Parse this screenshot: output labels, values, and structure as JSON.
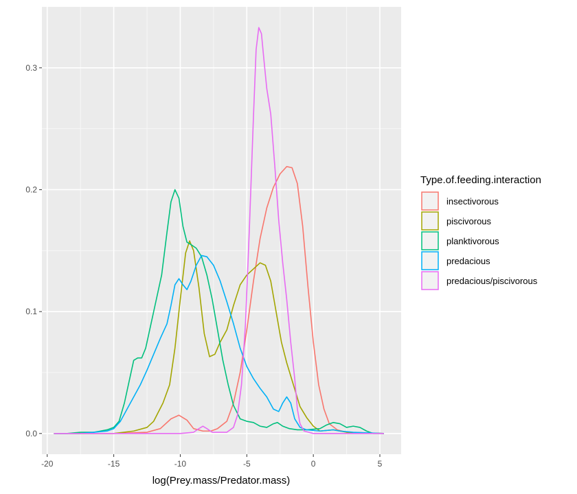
{
  "chart_data": {
    "type": "line",
    "title": "",
    "xlabel": "log(Prey.mass/Predator.mass)",
    "ylabel": "",
    "xlim": [
      -20.4,
      6.6
    ],
    "ylim": [
      -0.017,
      0.35
    ],
    "x_ticks": [
      -20,
      -15,
      -10,
      -5,
      0,
      5
    ],
    "x_tick_labels": [
      "-20",
      "-15",
      "-10",
      "-5",
      "0",
      "5"
    ],
    "y_ticks": [
      0.0,
      0.1,
      0.2,
      0.3
    ],
    "y_tick_labels": [
      "0.0",
      "0.1",
      "0.2",
      "0.3"
    ],
    "grid": true,
    "legend": {
      "title": "Type.of.feeding.interaction",
      "position": "right"
    },
    "series": [
      {
        "name": "insectivorous",
        "color": "#F8766D",
        "points": [
          [
            -19.5,
            0.0
          ],
          [
            -15,
            0.0
          ],
          [
            -12.5,
            0.001
          ],
          [
            -11.5,
            0.004
          ],
          [
            -10.7,
            0.012
          ],
          [
            -10.1,
            0.015
          ],
          [
            -9.5,
            0.011
          ],
          [
            -9.0,
            0.004
          ],
          [
            -8.3,
            0.002
          ],
          [
            -7.7,
            0.002
          ],
          [
            -7.2,
            0.004
          ],
          [
            -6.5,
            0.01
          ],
          [
            -6.0,
            0.025
          ],
          [
            -5.5,
            0.05
          ],
          [
            -5.0,
            0.085
          ],
          [
            -4.5,
            0.125
          ],
          [
            -4.0,
            0.16
          ],
          [
            -3.5,
            0.185
          ],
          [
            -3.0,
            0.202
          ],
          [
            -2.5,
            0.213
          ],
          [
            -2.0,
            0.219
          ],
          [
            -1.6,
            0.218
          ],
          [
            -1.2,
            0.205
          ],
          [
            -0.8,
            0.17
          ],
          [
            -0.4,
            0.12
          ],
          [
            0.0,
            0.075
          ],
          [
            0.4,
            0.04
          ],
          [
            0.8,
            0.02
          ],
          [
            1.2,
            0.008
          ],
          [
            1.8,
            0.003
          ],
          [
            2.5,
            0.001
          ],
          [
            5.3,
            0.0
          ]
        ]
      },
      {
        "name": "piscivorous",
        "color": "#A3A500",
        "points": [
          [
            -19.5,
            0.0
          ],
          [
            -15,
            0.0
          ],
          [
            -13.5,
            0.002
          ],
          [
            -12.5,
            0.005
          ],
          [
            -12.0,
            0.01
          ],
          [
            -11.3,
            0.025
          ],
          [
            -10.8,
            0.04
          ],
          [
            -10.4,
            0.07
          ],
          [
            -10.0,
            0.11
          ],
          [
            -9.6,
            0.148
          ],
          [
            -9.3,
            0.158
          ],
          [
            -9.0,
            0.15
          ],
          [
            -8.6,
            0.12
          ],
          [
            -8.2,
            0.082
          ],
          [
            -7.8,
            0.063
          ],
          [
            -7.4,
            0.065
          ],
          [
            -7.0,
            0.075
          ],
          [
            -6.5,
            0.085
          ],
          [
            -6.0,
            0.105
          ],
          [
            -5.5,
            0.122
          ],
          [
            -5.0,
            0.13
          ],
          [
            -4.5,
            0.135
          ],
          [
            -4.0,
            0.14
          ],
          [
            -3.6,
            0.138
          ],
          [
            -3.2,
            0.125
          ],
          [
            -2.8,
            0.1
          ],
          [
            -2.4,
            0.075
          ],
          [
            -2.0,
            0.058
          ],
          [
            -1.5,
            0.04
          ],
          [
            -1.0,
            0.022
          ],
          [
            -0.5,
            0.013
          ],
          [
            0.0,
            0.006
          ],
          [
            0.5,
            0.002
          ],
          [
            1.5,
            0.003
          ],
          [
            2.5,
            0.001
          ],
          [
            5.3,
            0.0
          ]
        ]
      },
      {
        "name": "planktivorous",
        "color": "#00BF7D",
        "points": [
          [
            -19.5,
            0.0
          ],
          [
            -18.5,
            0.0
          ],
          [
            -17.5,
            0.001
          ],
          [
            -16.5,
            0.001
          ],
          [
            -16.0,
            0.002
          ],
          [
            -15.5,
            0.003
          ],
          [
            -15.0,
            0.005
          ],
          [
            -14.6,
            0.01
          ],
          [
            -14.2,
            0.025
          ],
          [
            -13.8,
            0.045
          ],
          [
            -13.5,
            0.06
          ],
          [
            -13.2,
            0.062
          ],
          [
            -12.9,
            0.062
          ],
          [
            -12.6,
            0.07
          ],
          [
            -12.2,
            0.09
          ],
          [
            -11.8,
            0.11
          ],
          [
            -11.4,
            0.13
          ],
          [
            -11.0,
            0.165
          ],
          [
            -10.7,
            0.19
          ],
          [
            -10.4,
            0.2
          ],
          [
            -10.1,
            0.193
          ],
          [
            -9.8,
            0.17
          ],
          [
            -9.5,
            0.157
          ],
          [
            -9.2,
            0.155
          ],
          [
            -8.8,
            0.152
          ],
          [
            -8.4,
            0.145
          ],
          [
            -8.0,
            0.13
          ],
          [
            -7.6,
            0.11
          ],
          [
            -7.2,
            0.085
          ],
          [
            -6.8,
            0.06
          ],
          [
            -6.4,
            0.04
          ],
          [
            -6.0,
            0.023
          ],
          [
            -5.5,
            0.012
          ],
          [
            -5.0,
            0.01
          ],
          [
            -4.5,
            0.009
          ],
          [
            -4.0,
            0.006
          ],
          [
            -3.5,
            0.005
          ],
          [
            -3.0,
            0.008
          ],
          [
            -2.7,
            0.009
          ],
          [
            -2.3,
            0.006
          ],
          [
            -1.8,
            0.004
          ],
          [
            -1.2,
            0.003
          ],
          [
            -0.5,
            0.003
          ],
          [
            0.5,
            0.004
          ],
          [
            1.0,
            0.007
          ],
          [
            1.5,
            0.009
          ],
          [
            2.0,
            0.008
          ],
          [
            2.5,
            0.005
          ],
          [
            3.0,
            0.006
          ],
          [
            3.5,
            0.005
          ],
          [
            4.0,
            0.002
          ],
          [
            4.5,
            0.0
          ],
          [
            5.3,
            0.0
          ]
        ]
      },
      {
        "name": "predacious",
        "color": "#00B0F6",
        "points": [
          [
            -19.5,
            0.0
          ],
          [
            -17.5,
            0.0
          ],
          [
            -16.5,
            0.001
          ],
          [
            -15.5,
            0.002
          ],
          [
            -15.0,
            0.004
          ],
          [
            -14.5,
            0.01
          ],
          [
            -14.0,
            0.02
          ],
          [
            -13.5,
            0.03
          ],
          [
            -13.0,
            0.04
          ],
          [
            -12.5,
            0.052
          ],
          [
            -12.0,
            0.065
          ],
          [
            -11.5,
            0.078
          ],
          [
            -11.0,
            0.09
          ],
          [
            -10.7,
            0.105
          ],
          [
            -10.4,
            0.122
          ],
          [
            -10.1,
            0.127
          ],
          [
            -9.8,
            0.122
          ],
          [
            -9.5,
            0.118
          ],
          [
            -9.2,
            0.125
          ],
          [
            -8.8,
            0.138
          ],
          [
            -8.4,
            0.146
          ],
          [
            -8.0,
            0.145
          ],
          [
            -7.5,
            0.138
          ],
          [
            -7.0,
            0.125
          ],
          [
            -6.5,
            0.108
          ],
          [
            -6.0,
            0.09
          ],
          [
            -5.5,
            0.07
          ],
          [
            -5.0,
            0.055
          ],
          [
            -4.5,
            0.045
          ],
          [
            -4.0,
            0.037
          ],
          [
            -3.5,
            0.03
          ],
          [
            -3.0,
            0.02
          ],
          [
            -2.6,
            0.018
          ],
          [
            -2.3,
            0.025
          ],
          [
            -2.0,
            0.03
          ],
          [
            -1.7,
            0.025
          ],
          [
            -1.4,
            0.012
          ],
          [
            -1.0,
            0.005
          ],
          [
            -0.5,
            0.003
          ],
          [
            0.5,
            0.002
          ],
          [
            1.5,
            0.003
          ],
          [
            2.0,
            0.002
          ],
          [
            3.0,
            0.001
          ],
          [
            5.3,
            0.0
          ]
        ]
      },
      {
        "name": "predacious/piscivorous",
        "color": "#E76BF3",
        "points": [
          [
            -19.5,
            0.0
          ],
          [
            -10,
            0.0
          ],
          [
            -9.0,
            0.001
          ],
          [
            -8.6,
            0.004
          ],
          [
            -8.3,
            0.006
          ],
          [
            -8.0,
            0.004
          ],
          [
            -7.6,
            0.001
          ],
          [
            -6.5,
            0.001
          ],
          [
            -6.0,
            0.005
          ],
          [
            -5.7,
            0.015
          ],
          [
            -5.4,
            0.04
          ],
          [
            -5.1,
            0.09
          ],
          [
            -4.8,
            0.17
          ],
          [
            -4.5,
            0.26
          ],
          [
            -4.3,
            0.315
          ],
          [
            -4.1,
            0.333
          ],
          [
            -3.9,
            0.328
          ],
          [
            -3.7,
            0.305
          ],
          [
            -3.5,
            0.283
          ],
          [
            -3.2,
            0.262
          ],
          [
            -2.9,
            0.22
          ],
          [
            -2.6,
            0.175
          ],
          [
            -2.3,
            0.14
          ],
          [
            -2.0,
            0.11
          ],
          [
            -1.7,
            0.075
          ],
          [
            -1.4,
            0.045
          ],
          [
            -1.2,
            0.02
          ],
          [
            -1.0,
            0.008
          ],
          [
            -0.7,
            0.002
          ],
          [
            0.0,
            0.0
          ],
          [
            5.3,
            0.0
          ]
        ]
      }
    ]
  }
}
